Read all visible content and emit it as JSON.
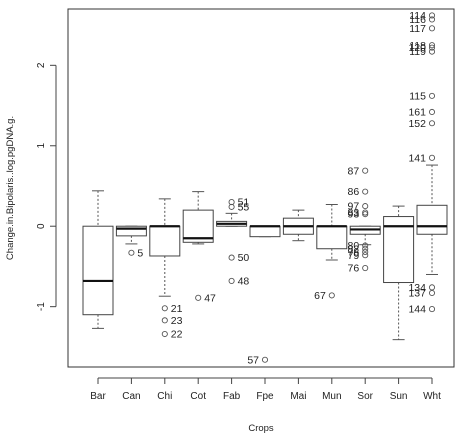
{
  "chart_data": {
    "type": "box",
    "title": "",
    "xlabel": "Crops",
    "ylabel": "Change.in.Bipolaris..log.pgDNA.g.",
    "ylim": [
      -1.75,
      2.7
    ],
    "yticks": [
      -1,
      0,
      1,
      2
    ],
    "grid": false,
    "categories": [
      "Bar",
      "Can",
      "Chi",
      "Cot",
      "Fab",
      "Fpe",
      "Mai",
      "Mun",
      "Sor",
      "Sun",
      "Wht"
    ],
    "boxes": [
      {
        "category": "Bar",
        "min": -1.27,
        "q1": -1.1,
        "median": -0.68,
        "q3": 0.0,
        "max": 0.44
      },
      {
        "category": "Can",
        "min": -0.22,
        "q1": -0.12,
        "median": -0.03,
        "q3": 0.0,
        "max": 0.0
      },
      {
        "category": "Chi",
        "min": -0.87,
        "q1": -0.37,
        "median": 0.0,
        "q3": 0.0,
        "max": 0.34
      },
      {
        "category": "Cot",
        "min": -0.22,
        "q1": -0.2,
        "median": -0.15,
        "q3": 0.2,
        "max": 0.43
      },
      {
        "category": "Fab",
        "min": 0.0,
        "q1": 0.0,
        "median": 0.03,
        "q3": 0.06,
        "max": 0.16
      },
      {
        "category": "Fpe",
        "min": -0.13,
        "q1": -0.13,
        "median": 0.0,
        "q3": 0.0,
        "max": 0.0
      },
      {
        "category": "Mai",
        "min": -0.18,
        "q1": -0.1,
        "median": 0.0,
        "q3": 0.1,
        "max": 0.2
      },
      {
        "category": "Mun",
        "min": -0.42,
        "q1": -0.28,
        "median": 0.0,
        "q3": 0.0,
        "max": 0.27
      },
      {
        "category": "Sor",
        "min": -0.23,
        "q1": -0.1,
        "median": -0.04,
        "q3": 0.0,
        "max": 0.0
      },
      {
        "category": "Sun",
        "min": -1.41,
        "q1": -0.7,
        "median": 0.0,
        "q3": 0.12,
        "max": 0.25
      },
      {
        "category": "Wht",
        "min": -0.6,
        "q1": -0.1,
        "median": 0.0,
        "q3": 0.26,
        "max": 0.76
      }
    ],
    "outliers": [
      {
        "category": "Can",
        "value": -0.33,
        "label": "5"
      },
      {
        "category": "Chi",
        "value": -1.02,
        "label": "21"
      },
      {
        "category": "Chi",
        "value": -1.17,
        "label": "23"
      },
      {
        "category": "Chi",
        "value": -1.34,
        "label": "22"
      },
      {
        "category": "Cot",
        "value": -0.89,
        "label": "47"
      },
      {
        "category": "Fab",
        "value": 0.3,
        "label": "51"
      },
      {
        "category": "Fab",
        "value": 0.24,
        "label": "55"
      },
      {
        "category": "Fab",
        "value": -0.39,
        "label": "50"
      },
      {
        "category": "Fab",
        "value": -0.68,
        "label": "48"
      },
      {
        "category": "Fpe",
        "value": -1.66,
        "label": "57"
      },
      {
        "category": "Mun",
        "value": -0.86,
        "label": "67"
      },
      {
        "category": "Sor",
        "value": 0.69,
        "label": "87"
      },
      {
        "category": "Sor",
        "value": 0.43,
        "label": "86"
      },
      {
        "category": "Sor",
        "value": 0.25,
        "label": "97"
      },
      {
        "category": "Sor",
        "value": 0.17,
        "label": "83"
      },
      {
        "category": "Sor",
        "value": 0.15,
        "label": "93"
      },
      {
        "category": "Sor",
        "value": -0.24,
        "label": "80"
      },
      {
        "category": "Sor",
        "value": -0.28,
        "label": "82"
      },
      {
        "category": "Sor",
        "value": -0.32,
        "label": "78"
      },
      {
        "category": "Sor",
        "value": -0.36,
        "label": "79"
      },
      {
        "category": "Sor",
        "value": -0.52,
        "label": "76"
      },
      {
        "category": "Wht",
        "value": 2.62,
        "label": "114"
      },
      {
        "category": "Wht",
        "value": 2.57,
        "label": "116"
      },
      {
        "category": "Wht",
        "value": 2.46,
        "label": "117"
      },
      {
        "category": "Wht",
        "value": 2.25,
        "label": "118"
      },
      {
        "category": "Wht",
        "value": 2.22,
        "label": "120"
      },
      {
        "category": "Wht",
        "value": 2.17,
        "label": "119"
      },
      {
        "category": "Wht",
        "value": 1.62,
        "label": "115"
      },
      {
        "category": "Wht",
        "value": 1.42,
        "label": "161"
      },
      {
        "category": "Wht",
        "value": 1.28,
        "label": "152"
      },
      {
        "category": "Wht",
        "value": 0.85,
        "label": "141"
      },
      {
        "category": "Wht",
        "value": -0.76,
        "label": "134"
      },
      {
        "category": "Wht",
        "value": -0.83,
        "label": "137"
      },
      {
        "category": "Wht",
        "value": -1.03,
        "label": "144"
      }
    ]
  }
}
